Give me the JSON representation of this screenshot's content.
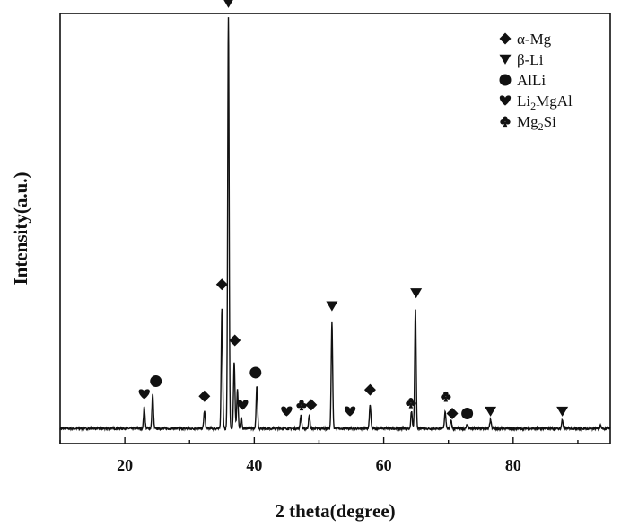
{
  "chart_data": {
    "type": "line",
    "title": "",
    "xlabel": "2 theta(degree)",
    "ylabel": "Intensity(a.u.)",
    "xlim": [
      10,
      95
    ],
    "ylim": [
      0,
      100
    ],
    "x_ticks": [
      20,
      40,
      60,
      80
    ],
    "y_ticks": [],
    "grid": false,
    "legend_position": "top-right",
    "legend": [
      {
        "marker": "diamond",
        "label": "α-Mg",
        "base": "α-Mg",
        "sub": "",
        "tail": ""
      },
      {
        "marker": "triangle-down",
        "label": "β-Li",
        "base": "β-Li",
        "sub": "",
        "tail": ""
      },
      {
        "marker": "circle",
        "label": "AlLi",
        "base": "AlLi",
        "sub": "",
        "tail": ""
      },
      {
        "marker": "heart",
        "label": "Li2MgAl",
        "base": "Li",
        "sub": "2",
        "tail": "MgAl"
      },
      {
        "marker": "club",
        "label": "Mg2Si",
        "base": "Mg",
        "sub": "2",
        "tail": "Si"
      }
    ],
    "baseline": 3.5,
    "peaks": [
      {
        "x": 23.0,
        "y": 8.5
      },
      {
        "x": 24.3,
        "y": 11.5
      },
      {
        "x": 32.3,
        "y": 7.5
      },
      {
        "x": 35.0,
        "y": 31.5
      },
      {
        "x": 36.0,
        "y": 99.0
      },
      {
        "x": 36.9,
        "y": 19.0
      },
      {
        "x": 37.4,
        "y": 12.5
      },
      {
        "x": 38.0,
        "y": 6.0
      },
      {
        "x": 40.4,
        "y": 13.5
      },
      {
        "x": 47.2,
        "y": 6.5
      },
      {
        "x": 48.5,
        "y": 6.5
      },
      {
        "x": 52.0,
        "y": 28.0
      },
      {
        "x": 57.9,
        "y": 9.0
      },
      {
        "x": 64.3,
        "y": 7.5
      },
      {
        "x": 64.9,
        "y": 31.5
      },
      {
        "x": 69.5,
        "y": 7.5
      },
      {
        "x": 70.4,
        "y": 5.5
      },
      {
        "x": 72.9,
        "y": 4.5
      },
      {
        "x": 76.5,
        "y": 5.5
      },
      {
        "x": 87.6,
        "y": 5.5
      },
      {
        "x": 93.5,
        "y": 4.2
      }
    ],
    "markers": [
      {
        "type": "diamond",
        "x": 35.0,
        "y": 37
      },
      {
        "type": "diamond",
        "x": 37.0,
        "y": 24
      },
      {
        "type": "diamond",
        "x": 32.3,
        "y": 11
      },
      {
        "type": "diamond",
        "x": 48.8,
        "y": 9
      },
      {
        "type": "diamond",
        "x": 57.9,
        "y": 12.5
      },
      {
        "type": "diamond",
        "x": 70.6,
        "y": 7
      },
      {
        "type": "triangle-down",
        "x": 36.0,
        "y": 102.5
      },
      {
        "type": "triangle-down",
        "x": 52.0,
        "y": 32
      },
      {
        "type": "triangle-down",
        "x": 65.0,
        "y": 35
      },
      {
        "type": "triangle-down",
        "x": 76.5,
        "y": 7.5
      },
      {
        "type": "triangle-down",
        "x": 87.6,
        "y": 7.5
      },
      {
        "type": "circle",
        "x": 24.8,
        "y": 14.5
      },
      {
        "type": "circle",
        "x": 40.2,
        "y": 16.5
      },
      {
        "type": "circle",
        "x": 72.9,
        "y": 7
      },
      {
        "type": "heart",
        "x": 23.0,
        "y": 11.5
      },
      {
        "type": "heart",
        "x": 38.2,
        "y": 9
      },
      {
        "type": "heart",
        "x": 45.0,
        "y": 7.5
      },
      {
        "type": "heart",
        "x": 54.8,
        "y": 7.5
      },
      {
        "type": "club",
        "x": 47.3,
        "y": 9
      },
      {
        "type": "club",
        "x": 64.2,
        "y": 9.5
      },
      {
        "type": "club",
        "x": 69.6,
        "y": 11
      }
    ]
  }
}
